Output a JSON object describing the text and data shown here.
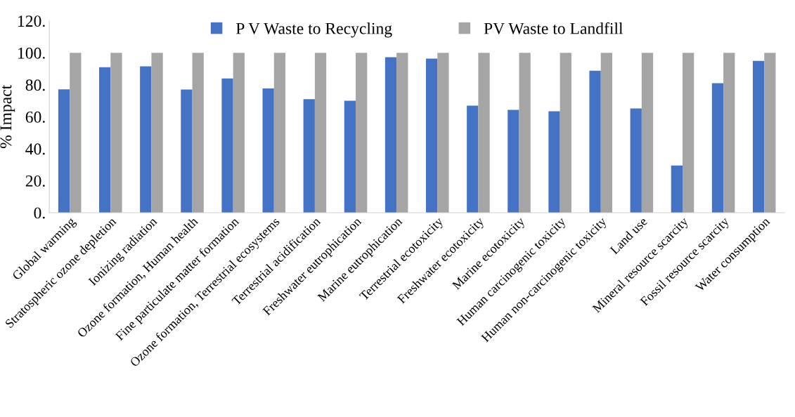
{
  "chart_data": {
    "type": "bar",
    "ylabel": "% Impact",
    "categories": [
      "Global warming",
      "Stratospheric ozone depletion",
      "Ionizing radiation",
      "Ozone formation, Human health",
      "Fine particulate matter formation",
      "Ozone formation, Terrestrial ecosystems",
      "Terrestrial acidification",
      "Freshwater eutrophication",
      "Marine eutrophication",
      "Terrestrial ecotoxicity",
      "Freshwater ecotoxicity",
      "Marine ecotoxicity",
      "Human carcinogenic toxicity",
      "Human non-carcinogenic toxicity",
      "Land use",
      "Mineral resource scarcity",
      "Fossil resource scarcity",
      "Water consumption"
    ],
    "series": [
      {
        "name": "P V Waste to Recycling",
        "color": "#4472c4",
        "values": [
          77.2,
          91,
          91.5,
          77,
          84,
          77.7,
          71,
          70,
          97.3,
          96.4,
          67,
          64.3,
          63.4,
          88.8,
          65.2,
          29.5,
          81,
          95
        ]
      },
      {
        "name": "PV Waste to Landfill",
        "color": "#a5a5a5",
        "values": [
          100,
          100,
          100,
          100,
          100,
          100,
          100,
          100,
          100,
          100,
          100,
          100,
          100,
          100,
          100,
          100,
          100,
          100
        ]
      }
    ],
    "ylim": [
      0,
      120
    ],
    "yticks": [
      {
        "value": 0,
        "label": "0."
      },
      {
        "value": 20,
        "label": "20."
      },
      {
        "value": 40,
        "label": "40."
      },
      {
        "value": 60,
        "label": "60."
      },
      {
        "value": 80,
        "label": "80."
      },
      {
        "value": 100,
        "label": "100."
      },
      {
        "value": 120,
        "label": "120."
      }
    ],
    "grid": false,
    "legend": "top"
  }
}
